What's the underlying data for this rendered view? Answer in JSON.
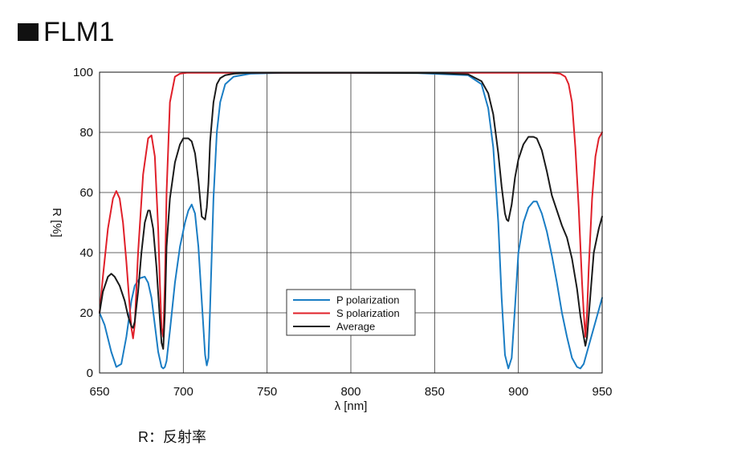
{
  "title": "FLM1",
  "footnote": "R：反射率",
  "chart_data": {
    "type": "line",
    "xlabel": "λ [nm]",
    "ylabel": "R [%]",
    "xlim": [
      650,
      950
    ],
    "ylim": [
      0,
      100
    ],
    "xticks": [
      650,
      700,
      750,
      800,
      850,
      900,
      950
    ],
    "yticks": [
      0,
      20,
      40,
      60,
      80,
      100
    ],
    "grid": true,
    "legend_position": "center-lower",
    "series": [
      {
        "name": "P polarization",
        "color": "#1a7dc4",
        "x": [
          650,
          653,
          657,
          660,
          663,
          666,
          669,
          671,
          674,
          677,
          679,
          681,
          683,
          685,
          687,
          688,
          689,
          690,
          692,
          695,
          698,
          701,
          703,
          705,
          707,
          709,
          711,
          713,
          714,
          715,
          716,
          718,
          720,
          722,
          725,
          730,
          740,
          760,
          800,
          840,
          870,
          878,
          882,
          885,
          888,
          890,
          892,
          894,
          896,
          898,
          900,
          903,
          906,
          909,
          911,
          914,
          917,
          920,
          923,
          926,
          929,
          932,
          935,
          937,
          939,
          941,
          943,
          945,
          948,
          950
        ],
        "y": [
          20,
          16,
          7,
          2,
          3,
          12,
          24,
          29,
          31.5,
          32,
          30,
          25,
          16,
          7,
          2,
          1.5,
          2,
          4,
          14,
          30,
          42,
          50,
          54,
          56,
          53,
          42,
          24,
          6,
          2.5,
          5,
          22,
          58,
          80,
          90,
          96,
          98.5,
          99.5,
          99.8,
          99.8,
          99.7,
          99,
          96,
          88,
          75,
          50,
          25,
          6,
          1.5,
          5,
          22,
          40,
          50,
          55,
          57,
          57,
          53,
          47,
          39,
          30,
          20,
          12,
          5,
          2,
          1.5,
          3,
          7,
          11,
          15,
          21,
          25
        ]
      },
      {
        "name": "S polarization",
        "color": "#e0202a",
        "x": [
          650,
          652,
          655,
          658,
          660,
          662,
          664,
          666,
          668,
          669,
          670,
          671,
          673,
          676,
          679,
          681,
          683,
          685,
          686,
          687,
          688,
          689,
          690,
          692,
          695,
          698,
          702,
          710,
          750,
          800,
          850,
          900,
          920,
          925,
          928,
          930,
          932,
          934,
          936,
          938,
          939,
          940,
          941,
          942,
          944,
          946,
          948,
          950
        ],
        "y": [
          20,
          32,
          48,
          58,
          60.5,
          58,
          50,
          37,
          22,
          15,
          11.5,
          16,
          40,
          66,
          78,
          79,
          72,
          48,
          30,
          15,
          12,
          30,
          60,
          90,
          98.5,
          99.5,
          99.8,
          99.8,
          99.8,
          99.8,
          99.8,
          99.8,
          99.8,
          99.5,
          98.5,
          96,
          90,
          75,
          55,
          30,
          20,
          12,
          20,
          35,
          58,
          72,
          78,
          80
        ]
      },
      {
        "name": "Average",
        "color": "#1a1a1a",
        "x": [
          650,
          652,
          655,
          657,
          659,
          662,
          665,
          667,
          669,
          670,
          671,
          673,
          675,
          677,
          679,
          680,
          682,
          684,
          686,
          687,
          688,
          689,
          690,
          692,
          695,
          698,
          700,
          703,
          705,
          707,
          709,
          711,
          713,
          714,
          715,
          716,
          718,
          720,
          722,
          725,
          730,
          740,
          760,
          800,
          850,
          870,
          878,
          882,
          885,
          888,
          890,
          892,
          893,
          894,
          896,
          898,
          900,
          903,
          906,
          909,
          911,
          914,
          917,
          920,
          923,
          926,
          929,
          932,
          935,
          937,
          939,
          940,
          941,
          943,
          945,
          948,
          950
        ],
        "y": [
          20,
          27,
          32,
          33,
          32,
          29,
          24,
          19,
          15.5,
          15,
          17,
          27,
          40,
          50,
          54,
          54,
          48,
          35,
          18,
          10,
          8,
          20,
          42,
          58,
          70,
          76,
          78,
          78,
          77,
          73,
          64,
          52,
          51,
          55,
          63,
          77,
          90,
          96,
          98,
          99,
          99.5,
          99.8,
          99.8,
          99.8,
          99.7,
          99.3,
          97,
          93,
          86,
          73,
          62,
          53,
          51,
          50.5,
          56,
          65,
          71,
          76,
          78.5,
          78.5,
          78,
          74,
          67,
          59,
          54,
          49,
          45,
          38,
          28,
          19,
          12,
          9,
          12,
          26,
          40,
          48,
          52
        ]
      }
    ]
  }
}
